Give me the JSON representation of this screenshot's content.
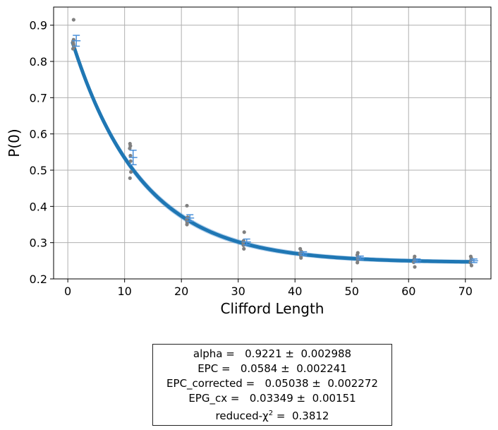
{
  "chart_data": {
    "type": "scatter",
    "title": "",
    "xlabel": "Clifford Length",
    "ylabel": "P(0)",
    "xlim": [
      -2.5,
      74.5
    ],
    "ylim": [
      0.2,
      0.95
    ],
    "xticks": [
      0,
      10,
      20,
      30,
      40,
      50,
      60,
      70
    ],
    "yticks": [
      0.2,
      0.3,
      0.4,
      0.5,
      0.6,
      0.7,
      0.8,
      0.9
    ],
    "grid": true,
    "fit": {
      "model": "A * alpha^x + B",
      "A": 0.65,
      "alpha": 0.9221,
      "B": 0.245,
      "band_width": 0.013,
      "color": "#1f77b4",
      "band_color": "#6fa8dc"
    },
    "samples": [
      {
        "x": 1,
        "y": [
          0.915,
          0.85,
          0.845,
          0.84,
          0.835,
          0.855,
          0.86
        ]
      },
      {
        "x": 11,
        "y": [
          0.573,
          0.567,
          0.56,
          0.54,
          0.525,
          0.495,
          0.478
        ]
      },
      {
        "x": 21,
        "y": [
          0.402,
          0.37,
          0.365,
          0.36,
          0.355,
          0.35
        ]
      },
      {
        "x": 31,
        "y": [
          0.329,
          0.305,
          0.3,
          0.293,
          0.283
        ]
      },
      {
        "x": 41,
        "y": [
          0.283,
          0.276,
          0.27,
          0.263,
          0.258
        ]
      },
      {
        "x": 51,
        "y": [
          0.272,
          0.266,
          0.258,
          0.252,
          0.245
        ]
      },
      {
        "x": 61,
        "y": [
          0.262,
          0.256,
          0.25,
          0.246,
          0.233
        ]
      },
      {
        "x": 71,
        "y": [
          0.262,
          0.257,
          0.252,
          0.245,
          0.237
        ]
      }
    ],
    "sample_color": "#808080",
    "means": [
      {
        "x": 1,
        "y": 0.857,
        "err": 0.015
      },
      {
        "x": 11,
        "y": 0.535,
        "err": 0.02
      },
      {
        "x": 21,
        "y": 0.368,
        "err": 0.009
      },
      {
        "x": 31,
        "y": 0.302,
        "err": 0.008
      },
      {
        "x": 41,
        "y": 0.27,
        "err": 0.005
      },
      {
        "x": 51,
        "y": 0.258,
        "err": 0.005
      },
      {
        "x": 61,
        "y": 0.25,
        "err": 0.005
      },
      {
        "x": 71,
        "y": 0.25,
        "err": 0.005
      }
    ],
    "mean_color": "#4a90d9"
  },
  "stats": {
    "alpha": "alpha =   0.9221 ±  0.002988",
    "epc": "EPC =   0.0584 ±  0.002241",
    "epc_corrected": "EPC_corrected =   0.05038 ±  0.002272",
    "epg_cx": "EPG_cx =   0.03349 ±  0.00151",
    "reduced_chi2_prefix": "reduced-χ",
    "reduced_chi2_exp": "2",
    "reduced_chi2_value": " =  0.3812"
  }
}
